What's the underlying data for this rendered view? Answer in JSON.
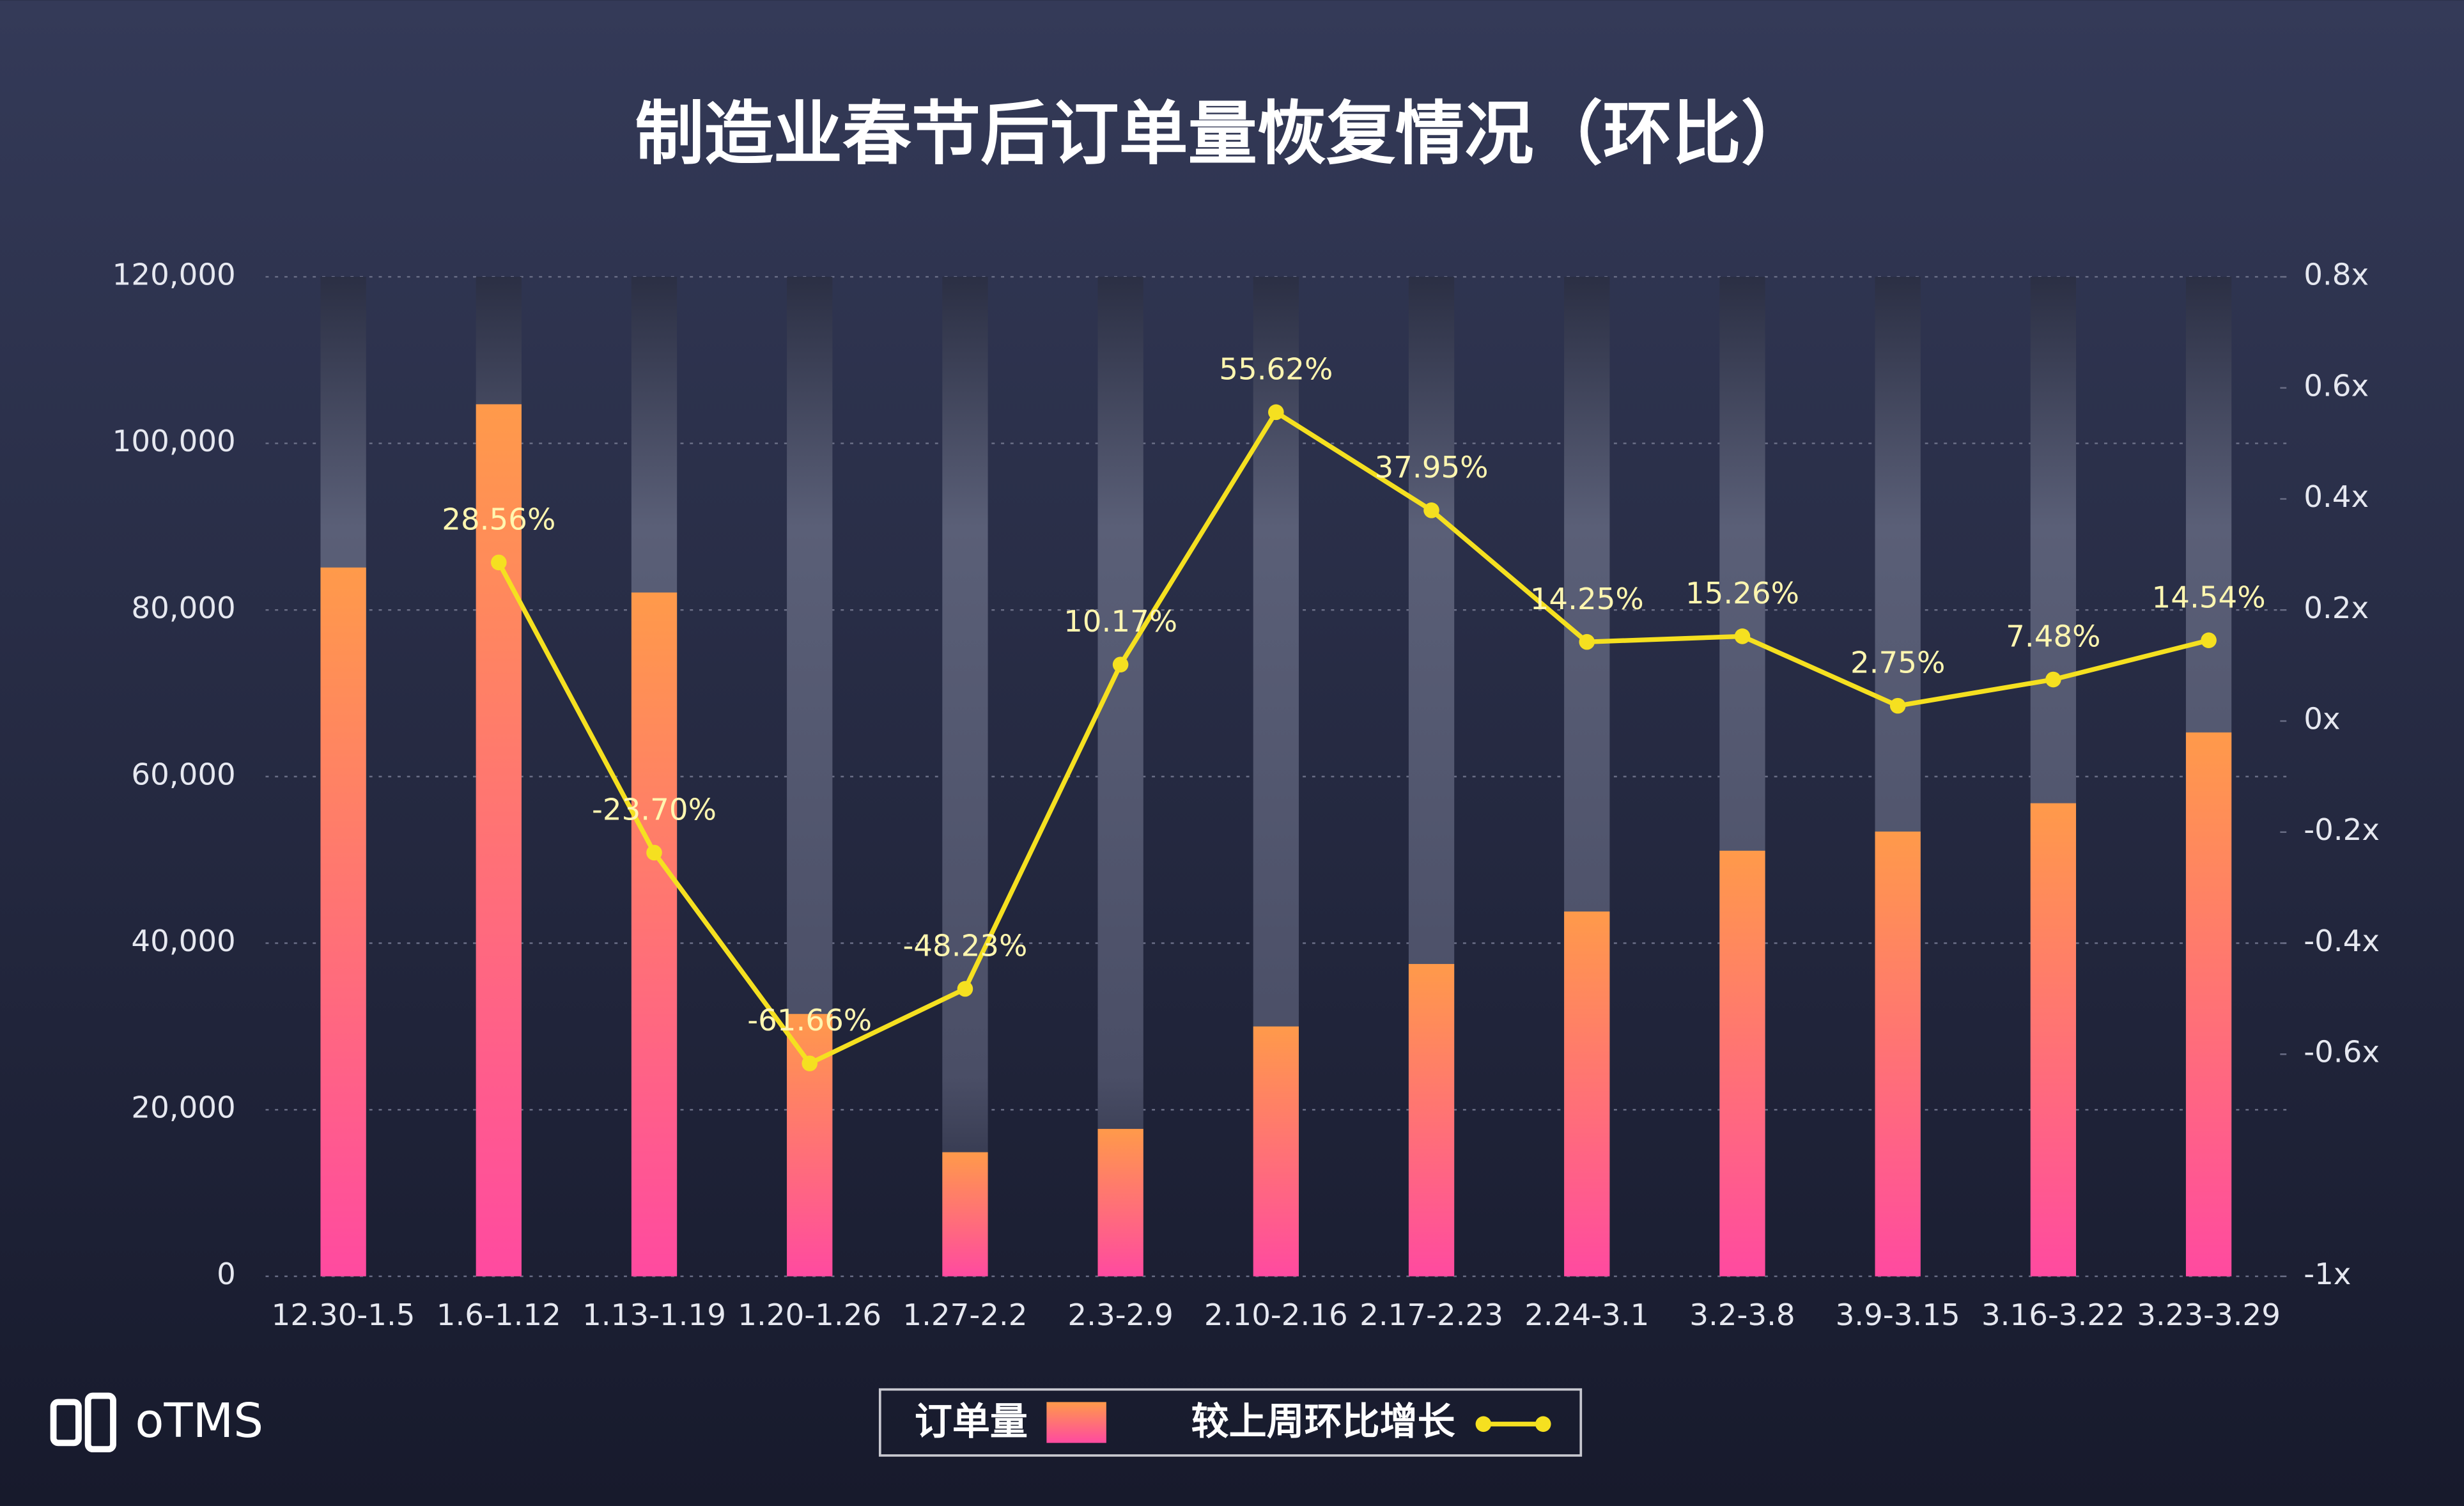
{
  "chart_data": {
    "type": "bar-line",
    "title": "制造业春节后订单量恢复情况（环比）",
    "logo": "oTMS",
    "categories": [
      "12.30-1.5",
      "1.6-1.12",
      "1.13-1.19",
      "1.20-1.26",
      "1.27-2.2",
      "2.3-2.9",
      "2.10-2.16",
      "2.17-2.23",
      "2.24-3.1",
      "3.2-3.8",
      "3.9-3.15",
      "3.16-3.22",
      "3.23-3.29"
    ],
    "series": [
      {
        "name": "订单量",
        "type": "bar",
        "color": "#ff9a4a",
        "values": [
          85100,
          104700,
          82100,
          31500,
          14900,
          17700,
          30000,
          37500,
          43800,
          51100,
          53400,
          56800,
          65300
        ]
      },
      {
        "name": "较上周环比增长",
        "type": "line",
        "axis": "y2",
        "color": "#f5e020",
        "values": [
          null,
          0.2856,
          -0.237,
          -0.6166,
          -0.4823,
          0.1017,
          0.5562,
          0.3795,
          0.1425,
          0.1526,
          0.0275,
          0.0748,
          0.1454
        ],
        "value_labels": [
          null,
          "28.56%",
          "-23.70%",
          "-61.66%",
          "-48.23%",
          "10.17%",
          "55.62%",
          "37.95%",
          "14.25%",
          "15.26%",
          "2.75%",
          "7.48%",
          "14.54%"
        ]
      }
    ],
    "ylim": [
      0,
      120000
    ],
    "yticks": [
      {
        "value": 0,
        "label": "0"
      },
      {
        "value": 20000,
        "label": "20,000"
      },
      {
        "value": 40000,
        "label": "40,000"
      },
      {
        "value": 60000,
        "label": "60,000"
      },
      {
        "value": 80000,
        "label": "80,000"
      },
      {
        "value": 100000,
        "label": "100,000"
      },
      {
        "value": 120000,
        "label": "120,000"
      }
    ],
    "y2lim": [
      -1,
      0.8
    ],
    "y2ticks": [
      {
        "value": -1,
        "label": "-1x"
      },
      {
        "value": -0.6,
        "label": "-0.6x"
      },
      {
        "value": -0.4,
        "label": "-0.4x"
      },
      {
        "value": -0.2,
        "label": "-0.2x"
      },
      {
        "value": 0,
        "label": "0x"
      },
      {
        "value": 0.2,
        "label": "0.2x"
      },
      {
        "value": 0.4,
        "label": "0.4x"
      },
      {
        "value": 0.6,
        "label": "0.6x"
      },
      {
        "value": 0.8,
        "label": "0.8x"
      }
    ],
    "grid": true
  }
}
